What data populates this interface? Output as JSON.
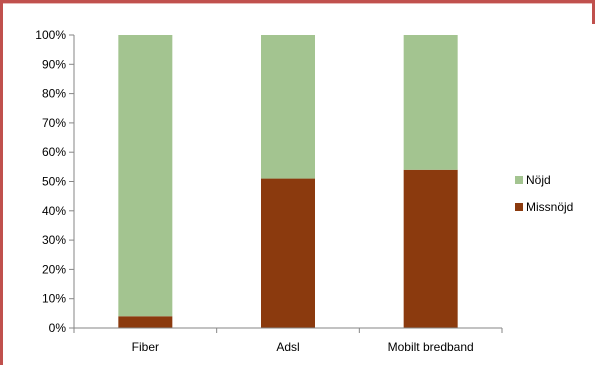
{
  "chart_data": {
    "type": "bar",
    "stacked": true,
    "categories": [
      "Fiber",
      "Adsl",
      "Mobilt bredband"
    ],
    "series": [
      {
        "name": "Missnöjd",
        "values": [
          4,
          51,
          54
        ],
        "color": "#8b3a0e"
      },
      {
        "name": "Nöjd",
        "values": [
          96,
          49,
          46
        ],
        "color": "#a3c490"
      }
    ],
    "yticks": [
      "0%",
      "10%",
      "20%",
      "30%",
      "40%",
      "50%",
      "60%",
      "70%",
      "80%",
      "90%",
      "100%"
    ],
    "ylim": [
      0,
      100
    ],
    "grid": false,
    "legend_position": "right",
    "legend_order": [
      "Nöjd",
      "Missnöjd"
    ]
  }
}
